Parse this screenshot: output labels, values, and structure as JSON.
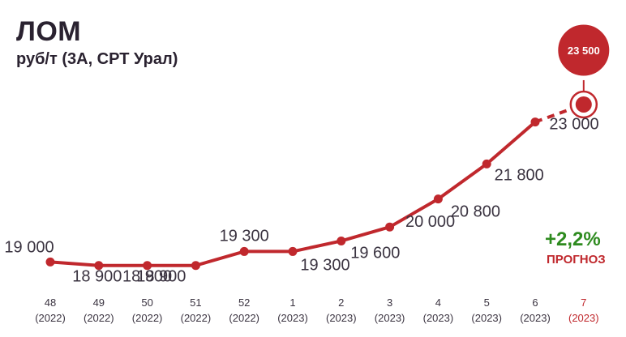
{
  "chart_data": {
    "type": "line",
    "title": "ЛОМ",
    "subtitle": "руб/т (3А, СРТ Урал)",
    "categories": [
      {
        "week": "48",
        "year": "(2022)"
      },
      {
        "week": "49",
        "year": "(2022)"
      },
      {
        "week": "50",
        "year": "(2022)"
      },
      {
        "week": "51",
        "year": "(2022)"
      },
      {
        "week": "52",
        "year": "(2022)"
      },
      {
        "week": "1",
        "year": "(2023)"
      },
      {
        "week": "2",
        "year": "(2023)"
      },
      {
        "week": "3",
        "year": "(2023)"
      },
      {
        "week": "4",
        "year": "(2023)"
      },
      {
        "week": "5",
        "year": "(2023)"
      },
      {
        "week": "6",
        "year": "(2023)"
      },
      {
        "week": "7",
        "year": "(2023)"
      }
    ],
    "values": [
      19000,
      18900,
      18900,
      18900,
      19300,
      19300,
      19600,
      20000,
      20800,
      21800,
      23000,
      23500
    ],
    "labels": [
      "19 000",
      "18 900",
      "18 900",
      "18 900",
      "19 300",
      "19 300",
      "19 600",
      "20 000",
      "20 800",
      "21 800",
      "23 000",
      "23 500"
    ],
    "forecast_index": 11,
    "forecast_change": "+2,2%",
    "forecast_label": "ПРОГНОЗ",
    "ylim": [
      18500,
      23800
    ],
    "grid": false,
    "colors": {
      "line": "#c0282d",
      "text": "#3a3340",
      "growth": "#2e8b1f"
    }
  }
}
